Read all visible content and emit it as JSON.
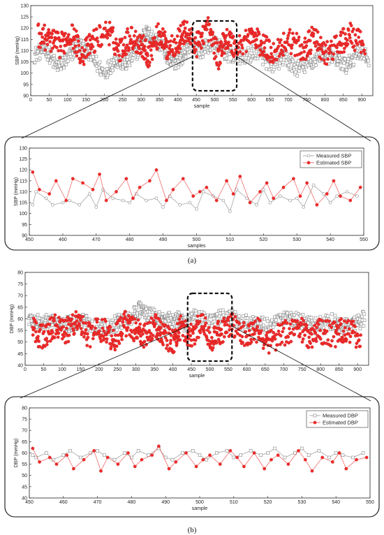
{
  "chart_data": [
    {
      "id": "overview_sbp",
      "type": "scatter",
      "xlabel": "sample",
      "ylabel": "SBP (mmHg)",
      "xlim": [
        0,
        930
      ],
      "ylim": [
        90,
        130
      ],
      "xticks": [
        0,
        50,
        100,
        150,
        200,
        250,
        300,
        350,
        400,
        450,
        500,
        550,
        600,
        650,
        700,
        750,
        800,
        850,
        900
      ],
      "yticks": [
        90,
        95,
        100,
        105,
        110,
        115,
        120,
        125,
        130
      ],
      "grid": false,
      "highlight_range": [
        440,
        560
      ],
      "series": [
        {
          "key": "measured",
          "color": "#888888",
          "marker": "open-square",
          "points": [
            [
              10,
              108
            ],
            [
              40,
              111
            ],
            [
              70,
              103
            ],
            [
              100,
              106
            ],
            [
              130,
              113
            ],
            [
              160,
              108
            ],
            [
              200,
              100
            ],
            [
              230,
              106
            ],
            [
              260,
              104
            ],
            [
              290,
              110
            ],
            [
              310,
              118
            ],
            [
              330,
              116
            ],
            [
              360,
              112
            ],
            [
              380,
              104
            ],
            [
              410,
              107
            ],
            [
              430,
              113
            ],
            [
              460,
              110
            ],
            [
              500,
              113
            ],
            [
              540,
              108
            ],
            [
              580,
              107
            ],
            [
              620,
              110
            ],
            [
              650,
              103
            ],
            [
              690,
              107
            ],
            [
              720,
              102
            ],
            [
              760,
              104
            ],
            [
              790,
              109
            ],
            [
              830,
              106
            ],
            [
              860,
              103
            ],
            [
              890,
              110
            ],
            [
              920,
              106
            ]
          ]
        },
        {
          "key": "estimated",
          "color": "#ee2b2b",
          "marker": "filled-circle",
          "points": [
            [
              20,
              117
            ],
            [
              50,
              115
            ],
            [
              80,
              112
            ],
            [
              110,
              118
            ],
            [
              140,
              108
            ],
            [
              170,
              114
            ],
            [
              210,
              119
            ],
            [
              240,
              110
            ],
            [
              270,
              116
            ],
            [
              300,
              113
            ],
            [
              320,
              108
            ],
            [
              350,
              118
            ],
            [
              370,
              111
            ],
            [
              400,
              114
            ],
            [
              420,
              119
            ],
            [
              450,
              112
            ],
            [
              480,
              121
            ],
            [
              510,
              107
            ],
            [
              530,
              116
            ],
            [
              560,
              111
            ],
            [
              600,
              117
            ],
            [
              630,
              112
            ],
            [
              660,
              109
            ],
            [
              700,
              115
            ],
            [
              740,
              110
            ],
            [
              770,
              116
            ],
            [
              800,
              108
            ],
            [
              840,
              113
            ],
            [
              870,
              117
            ],
            [
              910,
              111
            ]
          ]
        }
      ]
    },
    {
      "id": "zoom_sbp",
      "type": "line",
      "xlabel": "samples",
      "ylabel": "SBP (mmHg)",
      "xlim": [
        450,
        550
      ],
      "ylim": [
        90,
        130
      ],
      "xticks": [
        450,
        460,
        470,
        480,
        490,
        500,
        510,
        520,
        530,
        540,
        550
      ],
      "yticks": [
        90,
        95,
        100,
        105,
        110,
        115,
        120,
        125,
        130
      ],
      "grid": false,
      "legend_position": "top-right",
      "series": [
        {
          "key": "measured",
          "name": "Measured SBP",
          "color": "#888888",
          "marker": "open-circle",
          "x": [
            451,
            452,
            455,
            457,
            460,
            462,
            465,
            468,
            470,
            472,
            475,
            478,
            480,
            482,
            485,
            488,
            490,
            492,
            495,
            498,
            500,
            502,
            505,
            508,
            510,
            512,
            515,
            518,
            520,
            522,
            525,
            528,
            530,
            532,
            535,
            538,
            540,
            542,
            545,
            548
          ],
          "y": [
            104,
            110,
            107,
            104,
            105,
            106,
            104,
            109,
            103,
            111,
            107,
            106,
            105,
            109,
            106,
            107,
            103,
            108,
            104,
            105,
            102,
            110,
            108,
            106,
            101,
            111,
            107,
            104,
            111,
            105,
            108,
            106,
            107,
            103,
            113,
            109,
            105,
            108,
            110,
            108
          ]
        },
        {
          "key": "estimated",
          "name": "Estimated SBP",
          "color": "#ee2b2b",
          "marker": "filled-circle",
          "x": [
            451,
            453,
            456,
            458,
            461,
            463,
            466,
            469,
            471,
            473,
            476,
            479,
            481,
            483,
            486,
            488,
            491,
            493,
            496,
            499,
            501,
            503,
            506,
            509,
            511,
            513,
            516,
            519,
            521,
            523,
            526,
            529,
            531,
            533,
            536,
            539,
            541,
            543,
            546,
            549
          ],
          "y": [
            119,
            111,
            109,
            115,
            106,
            116,
            114,
            111,
            118,
            106,
            110,
            116,
            107,
            112,
            115,
            120,
            106,
            111,
            116,
            108,
            110,
            112,
            106,
            115,
            109,
            117,
            105,
            110,
            114,
            107,
            112,
            116,
            108,
            114,
            104,
            109,
            115,
            108,
            106,
            112
          ]
        }
      ]
    },
    {
      "id": "overview_dbp",
      "type": "scatter",
      "xlabel": "sample",
      "ylabel": "DBP (mmHg)",
      "xlim": [
        0,
        930
      ],
      "ylim": [
        40,
        80
      ],
      "xticks": [
        0,
        50,
        100,
        150,
        200,
        250,
        300,
        350,
        400,
        450,
        500,
        550,
        600,
        650,
        700,
        750,
        800,
        850,
        900
      ],
      "yticks": [
        40,
        45,
        50,
        55,
        60,
        65,
        70,
        75,
        80
      ],
      "grid": false,
      "highlight_range": [
        440,
        560
      ],
      "series": [
        {
          "key": "measured",
          "color": "#888888",
          "marker": "open-square",
          "points": [
            [
              10,
              60
            ],
            [
              40,
              58
            ],
            [
              70,
              59
            ],
            [
              100,
              57
            ],
            [
              130,
              58
            ],
            [
              160,
              59
            ],
            [
              200,
              56
            ],
            [
              230,
              57
            ],
            [
              260,
              59
            ],
            [
              290,
              61
            ],
            [
              310,
              64
            ],
            [
              330,
              62
            ],
            [
              360,
              60
            ],
            [
              380,
              59
            ],
            [
              410,
              60
            ],
            [
              430,
              58
            ],
            [
              460,
              61
            ],
            [
              500,
              58
            ],
            [
              540,
              62
            ],
            [
              580,
              59
            ],
            [
              620,
              58
            ],
            [
              650,
              57
            ],
            [
              690,
              59
            ],
            [
              720,
              60
            ],
            [
              760,
              58
            ],
            [
              790,
              57
            ],
            [
              830,
              59
            ],
            [
              860,
              56
            ],
            [
              890,
              58
            ],
            [
              920,
              60
            ]
          ]
        },
        {
          "key": "estimated",
          "color": "#ee2b2b",
          "marker": "filled-circle",
          "points": [
            [
              20,
              55
            ],
            [
              50,
              52
            ],
            [
              80,
              57
            ],
            [
              110,
              54
            ],
            [
              140,
              60
            ],
            [
              170,
              53
            ],
            [
              210,
              56
            ],
            [
              240,
              51
            ],
            [
              270,
              58
            ],
            [
              300,
              55
            ],
            [
              320,
              52
            ],
            [
              350,
              57
            ],
            [
              370,
              54
            ],
            [
              400,
              50
            ],
            [
              420,
              56
            ],
            [
              450,
              53
            ],
            [
              480,
              58
            ],
            [
              510,
              51
            ],
            [
              530,
              55
            ],
            [
              560,
              57
            ],
            [
              600,
              52
            ],
            [
              630,
              55
            ],
            [
              660,
              50
            ],
            [
              700,
              54
            ],
            [
              740,
              57
            ],
            [
              770,
              52
            ],
            [
              800,
              55
            ],
            [
              840,
              53
            ],
            [
              870,
              56
            ],
            [
              910,
              51
            ]
          ]
        }
      ]
    },
    {
      "id": "zoom_dbp",
      "type": "line",
      "xlabel": "sample",
      "ylabel": "DBP (mmHg)",
      "xlim": [
        450,
        550
      ],
      "ylim": [
        40,
        80
      ],
      "xticks": [
        450,
        460,
        470,
        480,
        490,
        500,
        510,
        520,
        530,
        540,
        550
      ],
      "yticks": [
        40,
        45,
        50,
        55,
        60,
        65,
        70,
        75,
        80
      ],
      "grid": false,
      "legend_position": "top-right",
      "series": [
        {
          "key": "measured",
          "name": "Measured DBP",
          "color": "#888888",
          "marker": "open-square",
          "x": [
            451,
            452,
            455,
            457,
            460,
            462,
            465,
            468,
            470,
            472,
            475,
            478,
            480,
            482,
            485,
            488,
            490,
            492,
            495,
            498,
            500,
            502,
            505,
            508,
            510,
            512,
            515,
            518,
            520,
            522,
            525,
            528,
            530,
            532,
            535,
            538,
            540,
            542,
            545,
            548
          ],
          "y": [
            59,
            58,
            60,
            57,
            59,
            61,
            58,
            60,
            61,
            59,
            57,
            60,
            58,
            61,
            59,
            62,
            58,
            57,
            60,
            61,
            59,
            57,
            60,
            61,
            58,
            59,
            61,
            59,
            60,
            62,
            58,
            60,
            62,
            59,
            61,
            58,
            60,
            59,
            58,
            60
          ]
        },
        {
          "key": "estimated",
          "name": "Estimated DBP",
          "color": "#ee2b2b",
          "marker": "filled-circle",
          "x": [
            451,
            453,
            456,
            458,
            461,
            463,
            466,
            469,
            471,
            473,
            476,
            479,
            481,
            483,
            486,
            488,
            491,
            493,
            496,
            499,
            501,
            503,
            506,
            509,
            511,
            513,
            516,
            519,
            521,
            523,
            526,
            529,
            531,
            533,
            536,
            539,
            541,
            543,
            546,
            549
          ],
          "y": [
            62,
            56,
            58,
            55,
            59,
            53,
            57,
            61,
            52,
            58,
            55,
            60,
            54,
            57,
            59,
            63,
            53,
            56,
            60,
            54,
            57,
            59,
            55,
            61,
            58,
            54,
            60,
            53,
            57,
            59,
            55,
            61,
            57,
            52,
            58,
            56,
            60,
            53,
            57,
            58
          ]
        }
      ]
    }
  ],
  "captions": {
    "panel_a": "(a)",
    "panel_b": "(b)"
  }
}
